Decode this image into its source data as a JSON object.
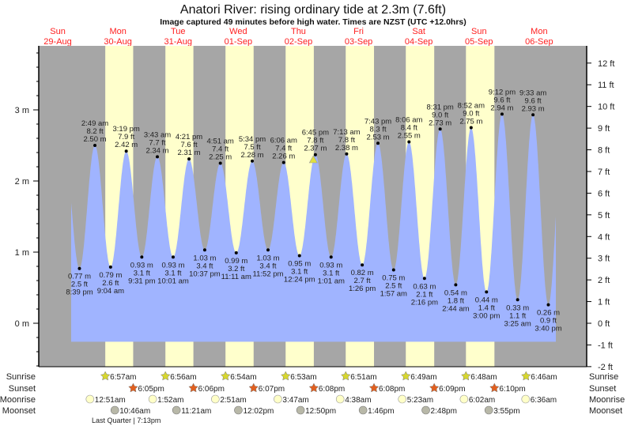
{
  "title": "Anatori River: rising  ordinary tide at 2.3m (7.6ft)",
  "subtitle": "Image captured 49 minutes before high water. Times are NZST (UTC +12.0hrs)",
  "colors": {
    "night": "#a6a6a6",
    "day": "#ffffcc",
    "water": "#a0b4ff",
    "day_label": "#ff2020",
    "sunrise": "#d6d630",
    "sunset": "#e06020",
    "moonrise": "#ffffc8",
    "moonset": "#b8b8a8",
    "marker": "#e0e040"
  },
  "chart_data": {
    "type": "area",
    "title": "Anatori River: rising  ordinary tide at 2.3m (7.6ft)",
    "left_axis": {
      "unit": "m",
      "range": [
        -0.6,
        3.8
      ],
      "ticks": [
        "0 m",
        "1 m",
        "2 m",
        "3 m"
      ],
      "tick_values": [
        0,
        1,
        2,
        3
      ]
    },
    "right_axis": {
      "unit": "ft",
      "ticks": [
        "-2 ft",
        "-1 ft",
        "0 ft",
        "1 ft",
        "2 ft",
        "3 ft",
        "4 ft",
        "5 ft",
        "6 ft",
        "7 ft",
        "8 ft",
        "9 ft",
        "10 ft",
        "11 ft",
        "12 ft"
      ],
      "tick_values": [
        -2,
        -1,
        0,
        1,
        2,
        3,
        4,
        5,
        6,
        7,
        8,
        9,
        10,
        11,
        12
      ]
    },
    "days": [
      {
        "weekday": "Sun",
        "date": "29-Aug",
        "daylight": false
      },
      {
        "weekday": "Mon",
        "date": "30-Aug",
        "daylight": true
      },
      {
        "weekday": "Tue",
        "date": "31-Aug",
        "daylight": true
      },
      {
        "weekday": "Wed",
        "date": "01-Sep",
        "daylight": true
      },
      {
        "weekday": "Thu",
        "date": "02-Sep",
        "daylight": true
      },
      {
        "weekday": "Fri",
        "date": "03-Sep",
        "daylight": true
      },
      {
        "weekday": "Sat",
        "date": "04-Sep",
        "daylight": true
      },
      {
        "weekday": "Sun",
        "date": "05-Sep",
        "daylight": true
      },
      {
        "weekday": "Mon",
        "date": "06-Sep",
        "daylight": false
      }
    ],
    "current": {
      "date": "02-Sep",
      "time": "5:56pm",
      "height_m": 2.3
    },
    "extremes": [
      {
        "type": "low",
        "date": "29-Aug",
        "time": "8:39 pm",
        "m": "0.77 m",
        "ft": "2.5 ft",
        "value": 0.77
      },
      {
        "type": "high",
        "date": "30-Aug",
        "time": "2:49 am",
        "m": "2.50 m",
        "ft": "8.2 ft",
        "value": 2.5
      },
      {
        "type": "low",
        "date": "30-Aug",
        "time": "9:04 am",
        "m": "0.79 m",
        "ft": "2.6 ft",
        "value": 0.79
      },
      {
        "type": "high",
        "date": "30-Aug",
        "time": "3:19 pm",
        "m": "2.42 m",
        "ft": "7.9 ft",
        "value": 2.42
      },
      {
        "type": "low",
        "date": "30-Aug",
        "time": "9:31 pm",
        "m": "0.93 m",
        "ft": "3.1 ft",
        "value": 0.93
      },
      {
        "type": "high",
        "date": "31-Aug",
        "time": "3:43 am",
        "m": "2.34 m",
        "ft": "7.7 ft",
        "value": 2.34
      },
      {
        "type": "low",
        "date": "31-Aug",
        "time": "10:01 am",
        "m": "0.93 m",
        "ft": "3.1 ft",
        "value": 0.93
      },
      {
        "type": "high",
        "date": "31-Aug",
        "time": "4:21 pm",
        "m": "2.31 m",
        "ft": "7.6 ft",
        "value": 2.31
      },
      {
        "type": "low",
        "date": "31-Aug",
        "time": "10:37 pm",
        "m": "1.03 m",
        "ft": "3.4 ft",
        "value": 1.03
      },
      {
        "type": "high",
        "date": "01-Sep",
        "time": "4:51 am",
        "m": "2.25 m",
        "ft": "7.4 ft",
        "value": 2.25
      },
      {
        "type": "low",
        "date": "01-Sep",
        "time": "11:11 am",
        "m": "0.99 m",
        "ft": "3.2 ft",
        "value": 0.99
      },
      {
        "type": "high",
        "date": "01-Sep",
        "time": "5:34 pm",
        "m": "2.28 m",
        "ft": "7.5 ft",
        "value": 2.28
      },
      {
        "type": "low",
        "date": "01-Sep",
        "time": "11:52 pm",
        "m": "1.03 m",
        "ft": "3.4 ft",
        "value": 1.03
      },
      {
        "type": "high",
        "date": "02-Sep",
        "time": "6:06 am",
        "m": "2.26 m",
        "ft": "7.4 ft",
        "value": 2.26
      },
      {
        "type": "low",
        "date": "02-Sep",
        "time": "12:24 pm",
        "m": "0.95 m",
        "ft": "3.1 ft",
        "value": 0.95
      },
      {
        "type": "high",
        "date": "02-Sep",
        "time": "6:45 pm",
        "m": "2.37 m",
        "ft": "7.8 ft",
        "value": 2.37
      },
      {
        "type": "low",
        "date": "03-Sep",
        "time": "1:01 am",
        "m": "0.93 m",
        "ft": "3.1 ft",
        "value": 0.93
      },
      {
        "type": "high",
        "date": "03-Sep",
        "time": "7:13 am",
        "m": "2.38 m",
        "ft": "7.8 ft",
        "value": 2.38
      },
      {
        "type": "low",
        "date": "03-Sep",
        "time": "1:26 pm",
        "m": "0.82 m",
        "ft": "2.7 ft",
        "value": 0.82
      },
      {
        "type": "high",
        "date": "03-Sep",
        "time": "7:43 pm",
        "m": "2.53 m",
        "ft": "8.3 ft",
        "value": 2.53
      },
      {
        "type": "low",
        "date": "04-Sep",
        "time": "1:57 am",
        "m": "0.75 m",
        "ft": "2.5 ft",
        "value": 0.75
      },
      {
        "type": "high",
        "date": "04-Sep",
        "time": "8:06 am",
        "m": "2.55 m",
        "ft": "8.4 ft",
        "value": 2.55
      },
      {
        "type": "low",
        "date": "04-Sep",
        "time": "2:16 pm",
        "m": "0.63 m",
        "ft": "2.1 ft",
        "value": 0.63
      },
      {
        "type": "high",
        "date": "04-Sep",
        "time": "8:31 pm",
        "m": "2.73 m",
        "ft": "9.0 ft",
        "value": 2.73
      },
      {
        "type": "low",
        "date": "05-Sep",
        "time": "2:44 am",
        "m": "0.54 m",
        "ft": "1.8 ft",
        "value": 0.54
      },
      {
        "type": "high",
        "date": "05-Sep",
        "time": "8:52 am",
        "m": "2.75 m",
        "ft": "9.0 ft",
        "value": 2.75
      },
      {
        "type": "low",
        "date": "05-Sep",
        "time": "3:00 pm",
        "m": "0.44 m",
        "ft": "1.4 ft",
        "value": 0.44
      },
      {
        "type": "high",
        "date": "05-Sep",
        "time": "9:12 pm",
        "m": "2.94 m",
        "ft": "9.6 ft",
        "value": 2.94
      },
      {
        "type": "low",
        "date": "06-Sep",
        "time": "3:25 am",
        "m": "0.33 m",
        "ft": "1.1 ft",
        "value": 0.33
      },
      {
        "type": "high",
        "date": "06-Sep",
        "time": "9:33 am",
        "m": "2.93 m",
        "ft": "9.6 ft",
        "value": 2.93
      },
      {
        "type": "low",
        "date": "06-Sep",
        "time": "3:40 pm",
        "m": "0.26 m",
        "ft": "0.9 ft",
        "value": 0.26
      }
    ]
  },
  "astro": {
    "labels": {
      "sunrise": "Sunrise",
      "sunset": "Sunset",
      "moonrise": "Moonrise",
      "moonset": "Moonset"
    },
    "sunrise": [
      {
        "date": "30-Aug",
        "time": "6:57am"
      },
      {
        "date": "31-Aug",
        "time": "6:56am"
      },
      {
        "date": "01-Sep",
        "time": "6:54am"
      },
      {
        "date": "02-Sep",
        "time": "6:53am"
      },
      {
        "date": "03-Sep",
        "time": "6:51am"
      },
      {
        "date": "04-Sep",
        "time": "6:49am"
      },
      {
        "date": "05-Sep",
        "time": "6:48am"
      },
      {
        "date": "06-Sep",
        "time": "6:46am"
      }
    ],
    "sunset": [
      {
        "date": "30-Aug",
        "time": "6:05pm"
      },
      {
        "date": "31-Aug",
        "time": "6:06pm"
      },
      {
        "date": "01-Sep",
        "time": "6:07pm"
      },
      {
        "date": "02-Sep",
        "time": "6:08pm"
      },
      {
        "date": "03-Sep",
        "time": "6:08pm"
      },
      {
        "date": "04-Sep",
        "time": "6:09pm"
      },
      {
        "date": "05-Sep",
        "time": "6:10pm"
      }
    ],
    "moonrise": [
      {
        "date": "30-Aug",
        "time": "12:51am"
      },
      {
        "date": "31-Aug",
        "time": "1:52am"
      },
      {
        "date": "01-Sep",
        "time": "2:51am"
      },
      {
        "date": "02-Sep",
        "time": "3:47am"
      },
      {
        "date": "03-Sep",
        "time": "4:38am"
      },
      {
        "date": "04-Sep",
        "time": "5:23am"
      },
      {
        "date": "05-Sep",
        "time": "6:02am"
      },
      {
        "date": "06-Sep",
        "time": "6:36am"
      }
    ],
    "moonset": [
      {
        "date": "30-Aug",
        "time": "10:46am"
      },
      {
        "date": "31-Aug",
        "time": "11:21am"
      },
      {
        "date": "01-Sep",
        "time": "12:02pm"
      },
      {
        "date": "02-Sep",
        "time": "12:50pm"
      },
      {
        "date": "03-Sep",
        "time": "1:46pm"
      },
      {
        "date": "04-Sep",
        "time": "2:48pm"
      },
      {
        "date": "05-Sep",
        "time": "3:55pm"
      }
    ],
    "moon_phase": "Last Quarter | 7:13pm"
  }
}
